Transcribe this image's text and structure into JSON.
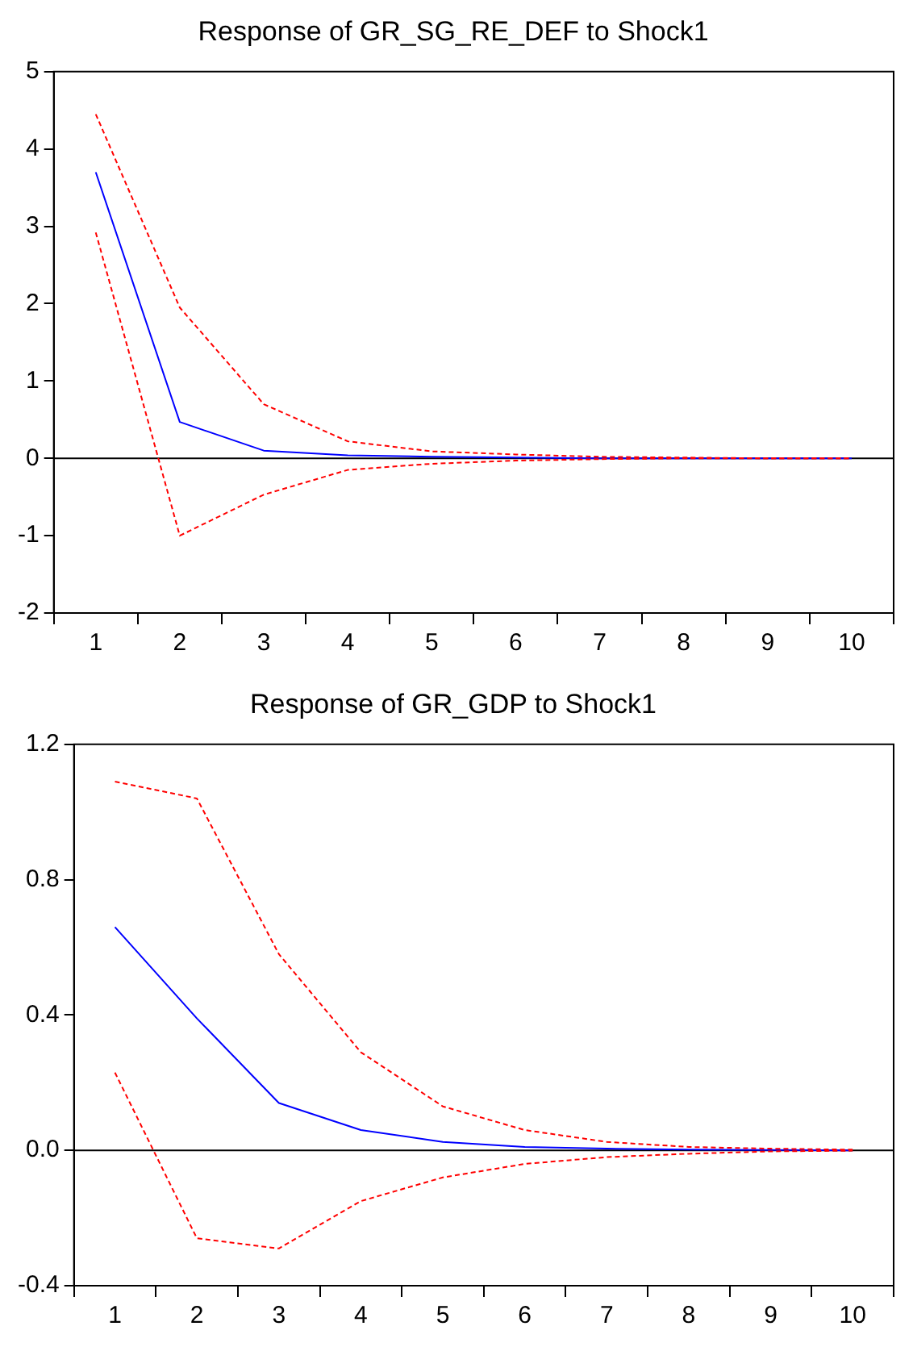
{
  "chart_data": [
    {
      "type": "line",
      "title": "Response of GR_SG_RE_DEF to Shock1",
      "categories": [
        "1",
        "2",
        "3",
        "4",
        "5",
        "6",
        "7",
        "8",
        "9",
        "10"
      ],
      "series": [
        {
          "color": "#0000ff",
          "line_style": "solid",
          "values": [
            3.7,
            0.47,
            0.1,
            0.04,
            0.02,
            0.01,
            0.0,
            0,
            0,
            0
          ]
        },
        {
          "color": "#ff0000",
          "line_style": "dashed",
          "values": [
            4.45,
            1.95,
            0.7,
            0.22,
            0.09,
            0.05,
            0.02,
            0.01,
            0,
            0
          ]
        },
        {
          "color": "#ff0000",
          "line_style": "dashed",
          "values": [
            2.92,
            -1.0,
            -0.47,
            -0.15,
            -0.07,
            -0.03,
            -0.01,
            0,
            0,
            0
          ]
        }
      ],
      "ylim": [
        -2,
        5
      ],
      "yticks": [
        -2,
        -1,
        0,
        1,
        2,
        3,
        4,
        5
      ],
      "grid": false,
      "legend": false,
      "marker": "none",
      "ref_lines": [
        {
          "axis": "y",
          "value": 0,
          "color": "#000000"
        }
      ]
    },
    {
      "type": "line",
      "title": "Response of GR_GDP to Shock1",
      "categories": [
        "1",
        "2",
        "3",
        "4",
        "5",
        "6",
        "7",
        "8",
        "9",
        "10"
      ],
      "series": [
        {
          "color": "#0000ff",
          "line_style": "solid",
          "values": [
            0.66,
            0.39,
            0.14,
            0.06,
            0.025,
            0.01,
            0.005,
            0.002,
            0.001,
            0
          ]
        },
        {
          "color": "#ff0000",
          "line_style": "dashed",
          "values": [
            1.09,
            1.04,
            0.58,
            0.29,
            0.13,
            0.06,
            0.025,
            0.01,
            0.005,
            0.002
          ]
        },
        {
          "color": "#ff0000",
          "line_style": "dashed",
          "values": [
            0.23,
            -0.26,
            -0.29,
            -0.15,
            -0.08,
            -0.04,
            -0.02,
            -0.01,
            -0.003,
            -0.001
          ]
        }
      ],
      "ylim": [
        -0.4,
        1.2
      ],
      "yticks": [
        -0.4,
        {
          "value": 0,
          "label": "0.0"
        },
        0.4,
        0.8,
        1.2
      ],
      "grid": false,
      "legend": false,
      "marker": "none",
      "ref_lines": [
        {
          "axis": "y",
          "value": 0,
          "color": "#000000"
        }
      ]
    }
  ]
}
